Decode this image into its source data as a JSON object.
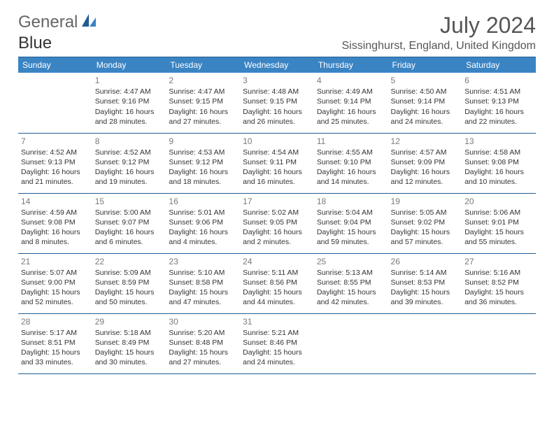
{
  "brand": {
    "part1": "General",
    "part2": "Blue"
  },
  "title": "July 2024",
  "location": "Sissinghurst, England, United Kingdom",
  "colors": {
    "header_bg": "#3b84c4",
    "header_text": "#ffffff",
    "rule": "#1f5d92",
    "daynum": "#7a7a7a",
    "body_text": "#333333",
    "brand_gray": "#666666",
    "brand_blue": "#3b84c4"
  },
  "weekdays": [
    "Sunday",
    "Monday",
    "Tuesday",
    "Wednesday",
    "Thursday",
    "Friday",
    "Saturday"
  ],
  "weeks": [
    [
      null,
      {
        "n": "1",
        "sr": "Sunrise: 4:47 AM",
        "ss": "Sunset: 9:16 PM",
        "d1": "Daylight: 16 hours",
        "d2": "and 28 minutes."
      },
      {
        "n": "2",
        "sr": "Sunrise: 4:47 AM",
        "ss": "Sunset: 9:15 PM",
        "d1": "Daylight: 16 hours",
        "d2": "and 27 minutes."
      },
      {
        "n": "3",
        "sr": "Sunrise: 4:48 AM",
        "ss": "Sunset: 9:15 PM",
        "d1": "Daylight: 16 hours",
        "d2": "and 26 minutes."
      },
      {
        "n": "4",
        "sr": "Sunrise: 4:49 AM",
        "ss": "Sunset: 9:14 PM",
        "d1": "Daylight: 16 hours",
        "d2": "and 25 minutes."
      },
      {
        "n": "5",
        "sr": "Sunrise: 4:50 AM",
        "ss": "Sunset: 9:14 PM",
        "d1": "Daylight: 16 hours",
        "d2": "and 24 minutes."
      },
      {
        "n": "6",
        "sr": "Sunrise: 4:51 AM",
        "ss": "Sunset: 9:13 PM",
        "d1": "Daylight: 16 hours",
        "d2": "and 22 minutes."
      }
    ],
    [
      {
        "n": "7",
        "sr": "Sunrise: 4:52 AM",
        "ss": "Sunset: 9:13 PM",
        "d1": "Daylight: 16 hours",
        "d2": "and 21 minutes."
      },
      {
        "n": "8",
        "sr": "Sunrise: 4:52 AM",
        "ss": "Sunset: 9:12 PM",
        "d1": "Daylight: 16 hours",
        "d2": "and 19 minutes."
      },
      {
        "n": "9",
        "sr": "Sunrise: 4:53 AM",
        "ss": "Sunset: 9:12 PM",
        "d1": "Daylight: 16 hours",
        "d2": "and 18 minutes."
      },
      {
        "n": "10",
        "sr": "Sunrise: 4:54 AM",
        "ss": "Sunset: 9:11 PM",
        "d1": "Daylight: 16 hours",
        "d2": "and 16 minutes."
      },
      {
        "n": "11",
        "sr": "Sunrise: 4:55 AM",
        "ss": "Sunset: 9:10 PM",
        "d1": "Daylight: 16 hours",
        "d2": "and 14 minutes."
      },
      {
        "n": "12",
        "sr": "Sunrise: 4:57 AM",
        "ss": "Sunset: 9:09 PM",
        "d1": "Daylight: 16 hours",
        "d2": "and 12 minutes."
      },
      {
        "n": "13",
        "sr": "Sunrise: 4:58 AM",
        "ss": "Sunset: 9:08 PM",
        "d1": "Daylight: 16 hours",
        "d2": "and 10 minutes."
      }
    ],
    [
      {
        "n": "14",
        "sr": "Sunrise: 4:59 AM",
        "ss": "Sunset: 9:08 PM",
        "d1": "Daylight: 16 hours",
        "d2": "and 8 minutes."
      },
      {
        "n": "15",
        "sr": "Sunrise: 5:00 AM",
        "ss": "Sunset: 9:07 PM",
        "d1": "Daylight: 16 hours",
        "d2": "and 6 minutes."
      },
      {
        "n": "16",
        "sr": "Sunrise: 5:01 AM",
        "ss": "Sunset: 9:06 PM",
        "d1": "Daylight: 16 hours",
        "d2": "and 4 minutes."
      },
      {
        "n": "17",
        "sr": "Sunrise: 5:02 AM",
        "ss": "Sunset: 9:05 PM",
        "d1": "Daylight: 16 hours",
        "d2": "and 2 minutes."
      },
      {
        "n": "18",
        "sr": "Sunrise: 5:04 AM",
        "ss": "Sunset: 9:04 PM",
        "d1": "Daylight: 15 hours",
        "d2": "and 59 minutes."
      },
      {
        "n": "19",
        "sr": "Sunrise: 5:05 AM",
        "ss": "Sunset: 9:02 PM",
        "d1": "Daylight: 15 hours",
        "d2": "and 57 minutes."
      },
      {
        "n": "20",
        "sr": "Sunrise: 5:06 AM",
        "ss": "Sunset: 9:01 PM",
        "d1": "Daylight: 15 hours",
        "d2": "and 55 minutes."
      }
    ],
    [
      {
        "n": "21",
        "sr": "Sunrise: 5:07 AM",
        "ss": "Sunset: 9:00 PM",
        "d1": "Daylight: 15 hours",
        "d2": "and 52 minutes."
      },
      {
        "n": "22",
        "sr": "Sunrise: 5:09 AM",
        "ss": "Sunset: 8:59 PM",
        "d1": "Daylight: 15 hours",
        "d2": "and 50 minutes."
      },
      {
        "n": "23",
        "sr": "Sunrise: 5:10 AM",
        "ss": "Sunset: 8:58 PM",
        "d1": "Daylight: 15 hours",
        "d2": "and 47 minutes."
      },
      {
        "n": "24",
        "sr": "Sunrise: 5:11 AM",
        "ss": "Sunset: 8:56 PM",
        "d1": "Daylight: 15 hours",
        "d2": "and 44 minutes."
      },
      {
        "n": "25",
        "sr": "Sunrise: 5:13 AM",
        "ss": "Sunset: 8:55 PM",
        "d1": "Daylight: 15 hours",
        "d2": "and 42 minutes."
      },
      {
        "n": "26",
        "sr": "Sunrise: 5:14 AM",
        "ss": "Sunset: 8:53 PM",
        "d1": "Daylight: 15 hours",
        "d2": "and 39 minutes."
      },
      {
        "n": "27",
        "sr": "Sunrise: 5:16 AM",
        "ss": "Sunset: 8:52 PM",
        "d1": "Daylight: 15 hours",
        "d2": "and 36 minutes."
      }
    ],
    [
      {
        "n": "28",
        "sr": "Sunrise: 5:17 AM",
        "ss": "Sunset: 8:51 PM",
        "d1": "Daylight: 15 hours",
        "d2": "and 33 minutes."
      },
      {
        "n": "29",
        "sr": "Sunrise: 5:18 AM",
        "ss": "Sunset: 8:49 PM",
        "d1": "Daylight: 15 hours",
        "d2": "and 30 minutes."
      },
      {
        "n": "30",
        "sr": "Sunrise: 5:20 AM",
        "ss": "Sunset: 8:48 PM",
        "d1": "Daylight: 15 hours",
        "d2": "and 27 minutes."
      },
      {
        "n": "31",
        "sr": "Sunrise: 5:21 AM",
        "ss": "Sunset: 8:46 PM",
        "d1": "Daylight: 15 hours",
        "d2": "and 24 minutes."
      },
      null,
      null,
      null
    ]
  ]
}
